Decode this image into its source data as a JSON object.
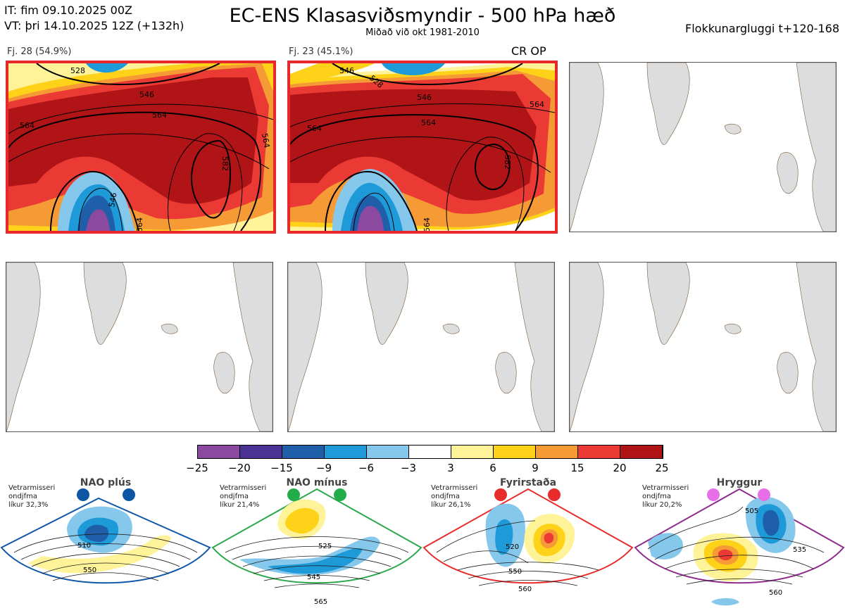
{
  "header": {
    "it_line": "IT: fim 09.10.2025 00Z",
    "vt_line": "VT: þri 14.10.2025 12Z  (+132h)",
    "title": "EC-ENS Klasasviðsmyndir - 500 hPa hæð",
    "subtitle": "Miðað við okt 1981-2010",
    "window": "Flokkunargluggi t+120-168"
  },
  "panels": [
    {
      "label": "Fj. 28 (54.9%)",
      "selected": true,
      "contours": [
        "528",
        "546",
        "564",
        "564",
        "546",
        "564",
        "582",
        "564"
      ]
    },
    {
      "label": "Fj. 23 (45.1%)",
      "selected": true,
      "op_label": "CR OP",
      "contours": [
        "546",
        "528",
        "546",
        "564",
        "564",
        "564",
        "582",
        "564"
      ]
    },
    {
      "label": "",
      "selected": false
    },
    {
      "label": "",
      "selected": false
    },
    {
      "label": "",
      "selected": false
    },
    {
      "label": "",
      "selected": false
    }
  ],
  "colorbar": {
    "ticks": [
      "−25",
      "−20",
      "−15",
      "−9",
      "−6",
      "−3",
      "3",
      "6",
      "9",
      "15",
      "20",
      "25"
    ],
    "colors": [
      "#8b4aa0",
      "#4a3295",
      "#1f5ea8",
      "#1e9ad8",
      "#86c8ec",
      "#ffffff",
      "#fff39a",
      "#ffd21a",
      "#f59a35",
      "#ea3a33",
      "#b01416"
    ]
  },
  "regimes": [
    {
      "name": "NAO plús",
      "note1": "Vetrarmisseri",
      "note2": "ondjfma",
      "note3": "líkur 32,3%",
      "color": "#1057a8",
      "dot": "#0d56a6",
      "contours": [
        "510",
        "550"
      ]
    },
    {
      "name": "NAO mínus",
      "note1": "Vetrarmisseri",
      "note2": "ondjfma",
      "note3": "líkur 21,4%",
      "color": "#2aa84a",
      "dot": "#22ad4a",
      "contours": [
        "525",
        "545",
        "565"
      ]
    },
    {
      "name": "Fyrirstaða",
      "note1": "Vetrarmisseri",
      "note2": "ondjfma",
      "note3": "líkur 26,1%",
      "color": "#e82b2b",
      "dot": "#e82b2b",
      "contours": [
        "520",
        "550",
        "560"
      ]
    },
    {
      "name": "Hryggur",
      "note1": "Vetrarmisseri",
      "note2": "ondjfma",
      "note3": "líkur 20,2%",
      "color": "#8e2a8c",
      "dot": "#e86ee8",
      "contours": [
        "505",
        "535",
        "560"
      ]
    }
  ],
  "chart_data": {
    "type": "heatmap",
    "title": "EC-ENS Klasasviðsmyndir - 500 hPa hæð",
    "colorbar_levels": [
      -25,
      -20,
      -15,
      -9,
      -6,
      -3,
      3,
      6,
      9,
      15,
      20,
      25
    ],
    "clusters": [
      {
        "name": "Fj. 28",
        "percent": 54.9
      },
      {
        "name": "Fj. 23",
        "percent": 45.1
      }
    ],
    "regime_probabilities": [
      {
        "name": "NAO plús",
        "percent": 32.3
      },
      {
        "name": "NAO mínus",
        "percent": 21.4
      },
      {
        "name": "Fyrirstaða",
        "percent": 26.1
      },
      {
        "name": "Hryggur",
        "percent": 20.2
      }
    ]
  }
}
